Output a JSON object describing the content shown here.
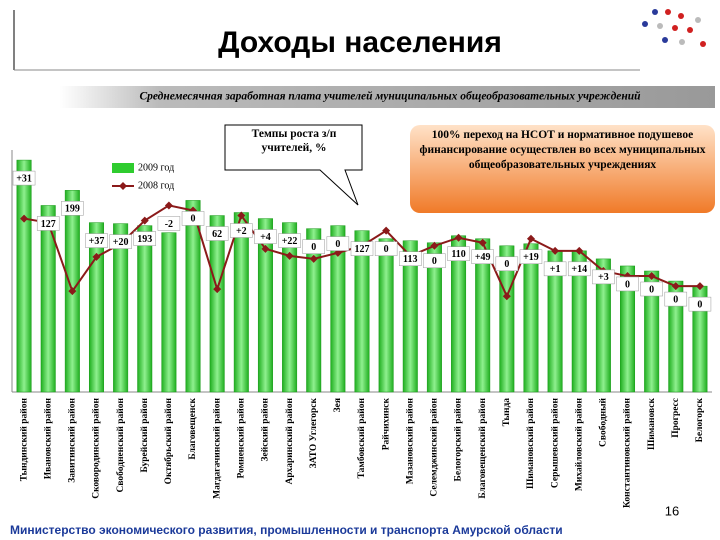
{
  "title": "Доходы населения",
  "subtitle": "Среднемесячная заработная плата учителей муниципальных общеобразовательных учреждений",
  "callout_growth": "Темпы роста з/п учителей, %",
  "callout_note": "100% переход на НСОТ и нормативное подушевое финансирование осуществлен во всех муниципальных общеобразовательных учреждениях",
  "page_number": "16",
  "footer": "Министерство экономического развития, промышленности и транспорта Амурской области",
  "chart_data": {
    "type": "bar_line",
    "categories": [
      "Тындинский район",
      "Ивановский район",
      "Завитинский район",
      "Сковородинский район",
      "Свободненский район",
      "Бурейский район",
      "Октябрьский район",
      "Благовещенск",
      "Магдагачинский район",
      "Ромненский район",
      "Зейский район",
      "Архаринский район",
      "ЗАТО Углегорск",
      "Зея",
      "Тамбовский район",
      "Райчихинск",
      "Мазановский район",
      "Селемджинский район",
      "Белогорский район",
      "Благовещенский район",
      "Тында",
      "Шимановский район",
      "Серышевский район",
      "Михайловский район",
      "Свободный",
      "Константиновский район",
      "Шимановск",
      "Прогресс",
      "Белогорск"
    ],
    "series": [
      {
        "name": "2009 год",
        "color": "#2fcc2f",
        "values": [
          230,
          185,
          200,
          168,
          167,
          165,
          158,
          190,
          175,
          178,
          172,
          168,
          162,
          165,
          160,
          152,
          150,
          148,
          155,
          152,
          145,
          147,
          140,
          140,
          132,
          125,
          120,
          110,
          105
        ]
      },
      {
        "name": "2008 год",
        "color": "#8b1a1a",
        "values": [
          172,
          168,
          100,
          134,
          147,
          170,
          185,
          180,
          102,
          175,
          142,
          135,
          132,
          138,
          145,
          160,
          135,
          145,
          153,
          148,
          95,
          152,
          140,
          140,
          120,
          115,
          115,
          105,
          105
        ]
      }
    ],
    "growth_labels": [
      "+31",
      "127",
      "199",
      "+37",
      "+20",
      "193",
      "-2",
      "0",
      "62",
      "+2",
      "+4",
      "+22",
      "0",
      "0",
      "127",
      "0",
      "113",
      "0",
      "110",
      "+49",
      "0",
      "+19",
      "+1",
      "+14",
      "+3",
      "0",
      "0",
      "0",
      "0"
    ],
    "ylim": [
      0,
      240
    ]
  }
}
